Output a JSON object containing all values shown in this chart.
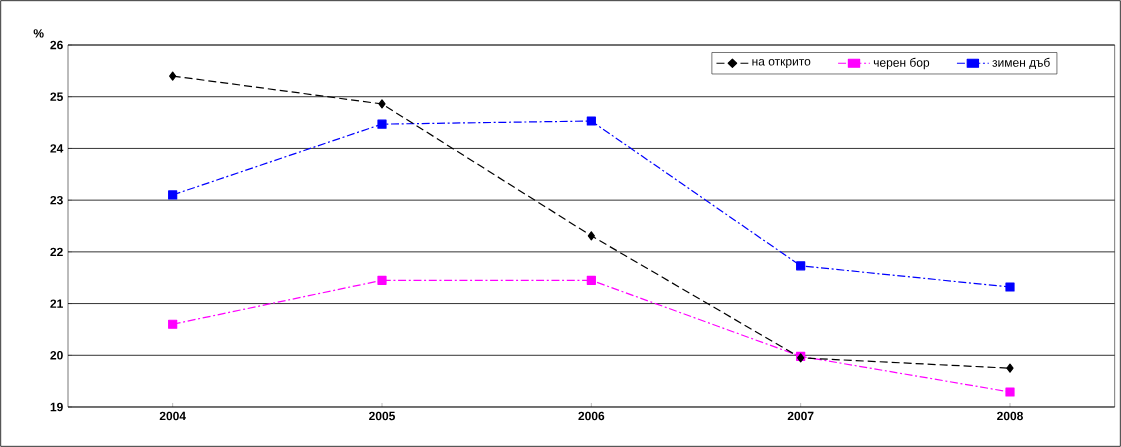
{
  "chart_data": {
    "type": "line",
    "ylabel": "%",
    "categories": [
      "2004",
      "2005",
      "2006",
      "2007",
      "2008"
    ],
    "series": [
      {
        "name": "на открито",
        "color": "#000000",
        "marker": "diamond",
        "line_style": "dashed",
        "values": [
          25.4,
          24.86,
          22.31,
          19.95,
          19.75
        ]
      },
      {
        "name": "черен бор",
        "color": "#ff00ff",
        "marker": "square",
        "line_style": "dashdot",
        "values": [
          20.6,
          21.45,
          21.45,
          19.98,
          19.29
        ]
      },
      {
        "name": "зимен дъб",
        "color": "#0000ff",
        "marker": "square",
        "line_style": "dashdot",
        "values": [
          23.1,
          24.47,
          24.53,
          21.73,
          21.32
        ]
      }
    ],
    "ylim": [
      19,
      26
    ],
    "yticks": [
      19,
      20,
      21,
      22,
      23,
      24,
      25,
      26
    ],
    "grid": "y",
    "legend": "top"
  }
}
